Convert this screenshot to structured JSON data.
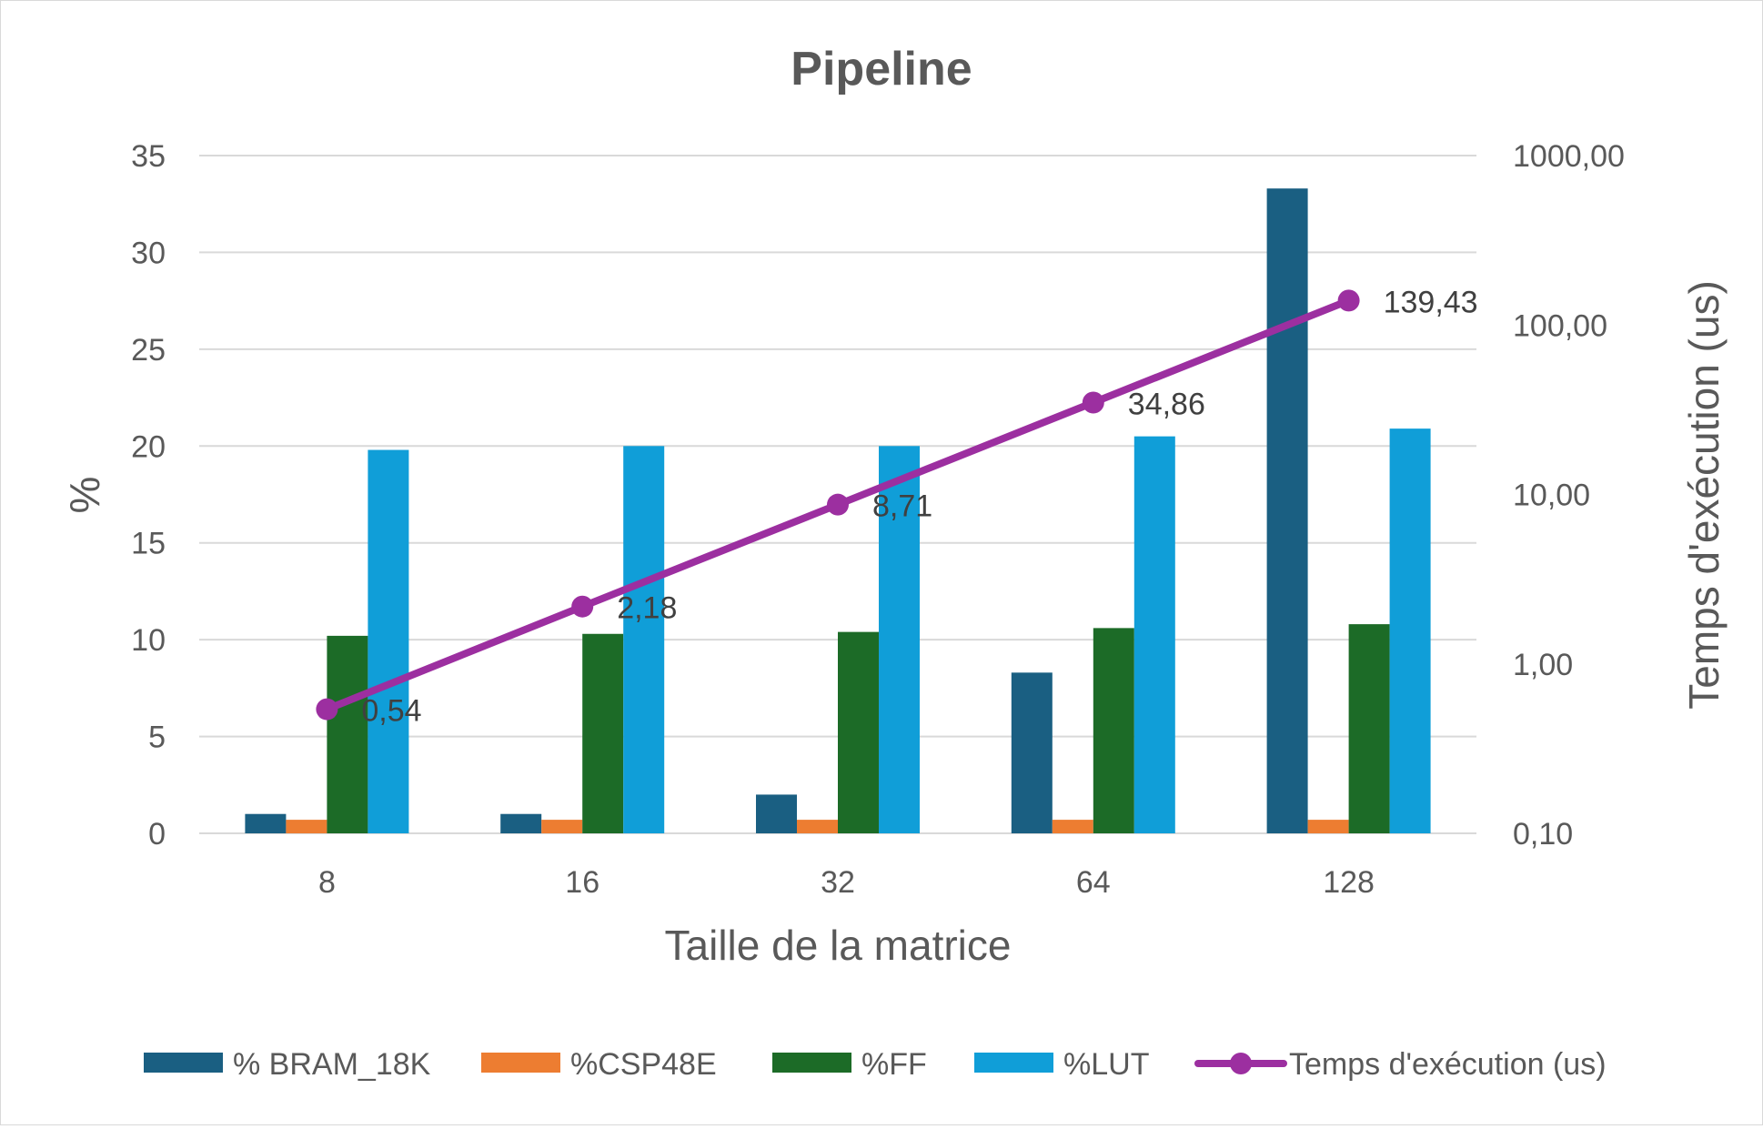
{
  "chart_data": {
    "type": "bar",
    "title": "Pipeline",
    "xlabel": "Taille de la matrice",
    "ylabel": "%",
    "y2label": "Temps d'exécution (us)",
    "categories": [
      "8",
      "16",
      "32",
      "64",
      "128"
    ],
    "ylim": [
      0,
      35
    ],
    "yticks": [
      "0",
      "5",
      "10",
      "15",
      "20",
      "25",
      "30",
      "35"
    ],
    "y2lim": [
      0.1,
      1000
    ],
    "y2scale": "log",
    "y2ticks": [
      "0,10",
      "1,00",
      "10,00",
      "100,00",
      "1000,00"
    ],
    "grid": true,
    "legend_position": "bottom",
    "series": [
      {
        "name": "% BRAM_18K",
        "type": "bar",
        "axis": "left",
        "color": "#1a5f82",
        "values": [
          1.0,
          1.0,
          2.0,
          8.3,
          33.3
        ]
      },
      {
        "name": "%CSP48E",
        "type": "bar",
        "axis": "left",
        "color": "#ed7d31",
        "values": [
          0.7,
          0.7,
          0.7,
          0.7,
          0.7
        ]
      },
      {
        "name": "%FF",
        "type": "bar",
        "axis": "left",
        "color": "#1c6b27",
        "values": [
          10.2,
          10.3,
          10.4,
          10.6,
          10.8
        ]
      },
      {
        "name": "%LUT",
        "type": "bar",
        "axis": "left",
        "color": "#109ed8",
        "values": [
          19.8,
          20.0,
          20.0,
          20.5,
          20.9
        ]
      },
      {
        "name": "Temps d'exécution (us)",
        "type": "line",
        "axis": "right",
        "color": "#9c2fa0",
        "values": [
          0.54,
          2.18,
          8.71,
          34.86,
          139.43
        ],
        "data_labels": [
          "0,54",
          "2,18",
          "8,71",
          "34,86",
          "139,43"
        ]
      }
    ]
  }
}
